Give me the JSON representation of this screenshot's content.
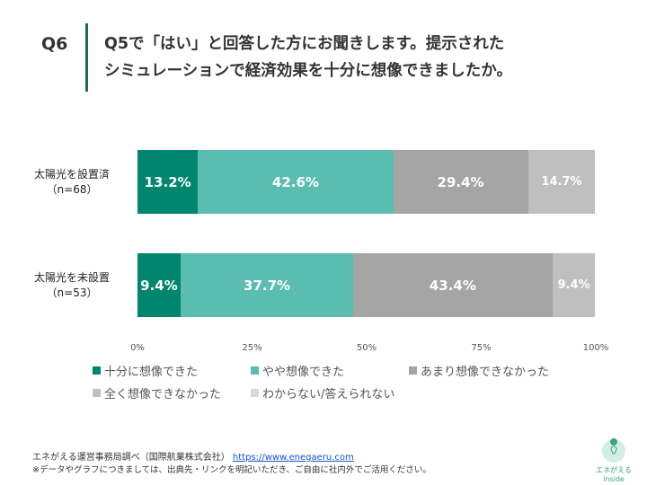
{
  "header": {
    "q": "Q6",
    "title_line1": "Q5で「はい」と回答した方にお聞きします。提示された",
    "title_line2": "シミュレーションで経済効果を十分に想像できましたか。"
  },
  "chart_data": {
    "type": "bar",
    "orientation": "horizontal",
    "stacked": true,
    "categories": [
      {
        "name": "太陽光を設置済",
        "n": "（n=68）"
      },
      {
        "name": "太陽光を未設置",
        "n": "（n=53）"
      }
    ],
    "series": [
      {
        "name": "十分に想像できた",
        "color": "#00866e",
        "values": [
          13.2,
          9.4
        ],
        "labels": [
          "13.2%",
          "9.4%"
        ]
      },
      {
        "name": "やや想像できた",
        "color": "#5bbcb1",
        "values": [
          42.6,
          37.7
        ],
        "labels": [
          "42.6%",
          "37.7%"
        ]
      },
      {
        "name": "あまり想像できなかった",
        "color": "#a5a5a5",
        "values": [
          29.4,
          43.4
        ],
        "labels": [
          "29.4%",
          "43.4%"
        ]
      },
      {
        "name": "全く想像できなかった",
        "color": "#bfbfbf",
        "values": [
          14.7,
          9.4
        ],
        "labels": [
          "14.7%",
          "9.4%"
        ]
      },
      {
        "name": "わからない/答えられない",
        "color": "#d9d9d9",
        "values": [
          0,
          0
        ],
        "labels": [
          "",
          ""
        ]
      }
    ],
    "xlim": [
      0,
      100
    ],
    "xticks": [
      "0%",
      "25%",
      "50%",
      "75%",
      "100%"
    ],
    "grid": false,
    "legend": "bottom"
  },
  "footer": {
    "source": "エネがえる運営事務局調べ（国際航業株式会社）",
    "url": "https://www.enegaeru.com",
    "note": "※データやグラフにつきましては、出典先・リンクを明記いただき、ご自由に社内外でご活用ください。",
    "logo_text": "エネがえる",
    "logo_sub": "inside"
  }
}
